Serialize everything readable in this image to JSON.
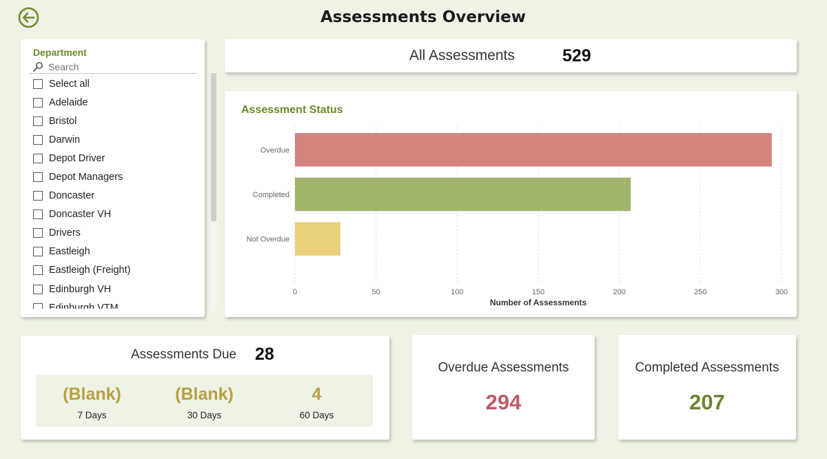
{
  "header": {
    "title": "Assessments Overview"
  },
  "slicer": {
    "title": "Department",
    "search_placeholder": "Search",
    "items": [
      "Select all",
      "Adelaide",
      "Bristol",
      "Darwin",
      "Depot Driver",
      "Depot Managers",
      "Doncaster",
      "Doncaster VH",
      "Drivers",
      "Eastleigh",
      "Eastleigh (Freight)",
      "Edinburgh VH",
      "Edinburgh VTM"
    ]
  },
  "all_assessments": {
    "label": "All Assessments",
    "value": "529"
  },
  "chart_data": {
    "type": "bar",
    "orientation": "horizontal",
    "title": "Assessment Status",
    "categories": [
      "Overdue",
      "Completed",
      "Not Overdue"
    ],
    "values": [
      294,
      207,
      28
    ],
    "colors": [
      "#d5837f",
      "#a0b46c",
      "#e8d07c"
    ],
    "xlabel": "Number of Assessments",
    "ylabel": "",
    "xlim": [
      0,
      300
    ],
    "xticks": [
      0,
      50,
      100,
      150,
      200,
      250,
      300
    ],
    "grid": true
  },
  "assessments_due": {
    "label": "Assessments Due",
    "value": "28",
    "columns": [
      {
        "value": "(Blank)",
        "label": "7 Days"
      },
      {
        "value": "(Blank)",
        "label": "30 Days"
      },
      {
        "value": "4",
        "label": "60 Days"
      }
    ]
  },
  "overdue": {
    "label": "Overdue Assessments",
    "value": "294",
    "color": "#c05a64"
  },
  "completed": {
    "label": "Completed Assessments",
    "value": "207",
    "color": "#6c8232"
  },
  "colors": {
    "accent": "#6b8a2a",
    "background": "#eef3e6"
  },
  "icons": {
    "back": "back-arrow-icon",
    "search": "search-icon"
  }
}
